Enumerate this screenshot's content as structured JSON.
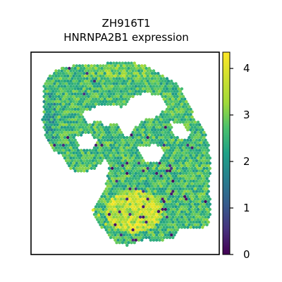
{
  "chart_data": {
    "type": "scatter",
    "title": "ZH916T1",
    "subtitle": "HNRNPA2B1 expression",
    "xlabel": "",
    "ylabel": "",
    "colorbar": {
      "colormap": "viridis",
      "range": [
        0,
        4.35
      ],
      "ticks": [
        "0",
        "1",
        "2",
        "3",
        "4"
      ]
    },
    "grid": false,
    "legend": "none",
    "spots": {
      "description_scale": "expression value per hexagonal spot",
      "background_level": 2.6,
      "hot_region_level": 3.6,
      "low_outliers": 0.1
    },
    "colors": {
      "dark": "#440154",
      "blue": "#31688e",
      "teal": "#21918c",
      "green": "#35b779",
      "yellow": "#fde725"
    }
  }
}
